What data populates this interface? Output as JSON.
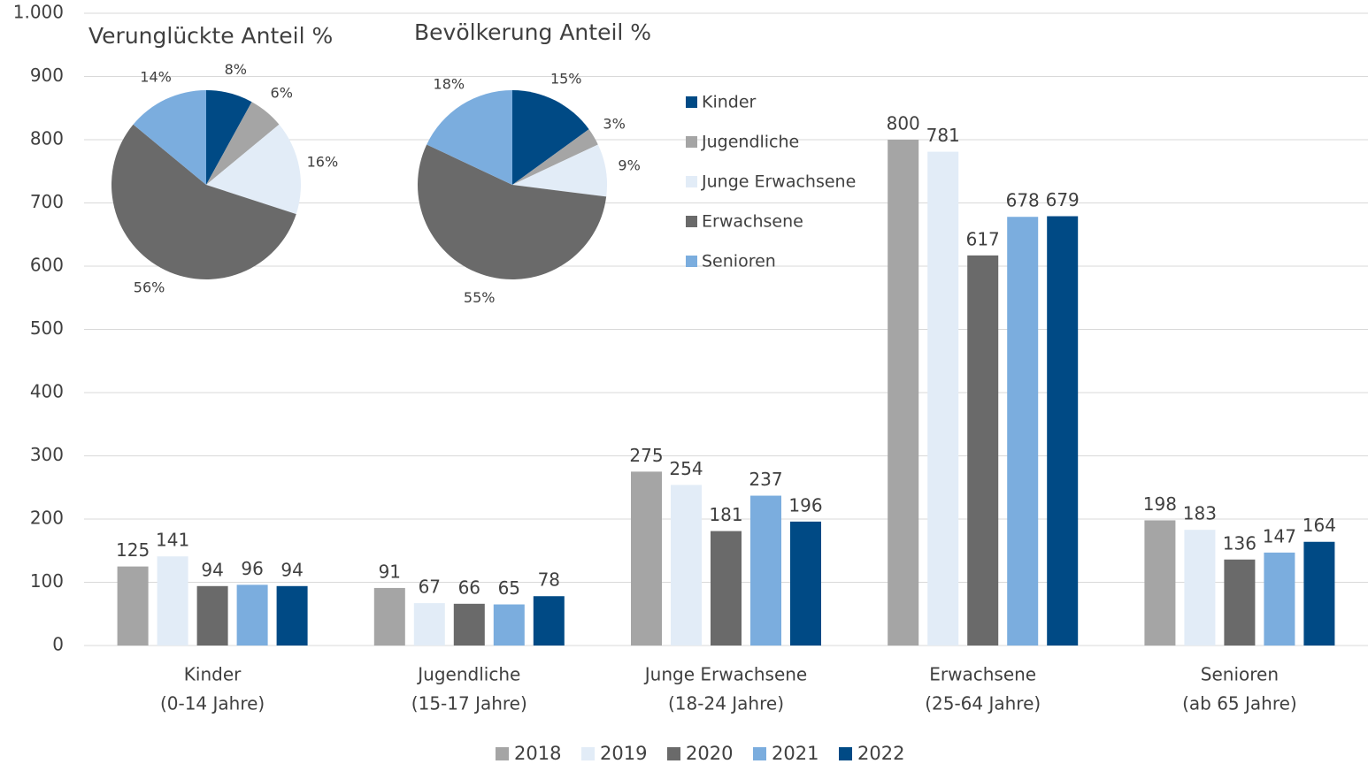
{
  "chart_data": [
    {
      "type": "bar",
      "categories": [
        [
          "Kinder",
          "(0-14 Jahre)"
        ],
        [
          "Jugendliche",
          "(15-17 Jahre)"
        ],
        [
          "Junge Erwachsene",
          "(18-24 Jahre)"
        ],
        [
          "Erwachsene",
          "(25-64 Jahre)"
        ],
        [
          "Senioren",
          "(ab 65 Jahre)"
        ]
      ],
      "series": [
        {
          "name": "2018",
          "color": "#a5a5a5",
          "values": [
            125,
            91,
            275,
            800,
            198
          ]
        },
        {
          "name": "2019",
          "color": "#e2ecf7",
          "values": [
            141,
            67,
            254,
            781,
            183
          ]
        },
        {
          "name": "2020",
          "color": "#6a6a6a",
          "values": [
            94,
            66,
            181,
            617,
            136
          ]
        },
        {
          "name": "2021",
          "color": "#7badde",
          "values": [
            96,
            65,
            237,
            678,
            147
          ]
        },
        {
          "name": "2022",
          "color": "#004a85",
          "values": [
            94,
            78,
            196,
            679,
            164
          ]
        }
      ],
      "ylim": [
        0,
        1000
      ],
      "yticks": [
        0,
        100,
        200,
        300,
        400,
        500,
        600,
        700,
        800,
        900,
        {
          "value": 1000,
          "label": "1.000"
        }
      ],
      "grid": true
    },
    {
      "type": "pie",
      "categories": [
        "Kinder",
        "Jugendliche",
        "Junge Erwachsene",
        "Erwachsene",
        "Senioren"
      ],
      "colors": [
        "#004a85",
        "#a5a5a5",
        "#e2ecf7",
        "#6a6a6a",
        "#7badde"
      ],
      "series": [
        {
          "name": "Verunglückte Anteil %",
          "values": [
            8,
            6,
            16,
            56,
            14
          ],
          "value_labels": [
            "8%",
            "6%",
            "16%",
            "56%",
            "14%"
          ]
        },
        {
          "name": "Bevölkerung Anteil %",
          "values": [
            15,
            3,
            9,
            55,
            18
          ],
          "value_labels": [
            "15%",
            "3%",
            "9%",
            "55%",
            "18%"
          ]
        }
      ]
    }
  ]
}
